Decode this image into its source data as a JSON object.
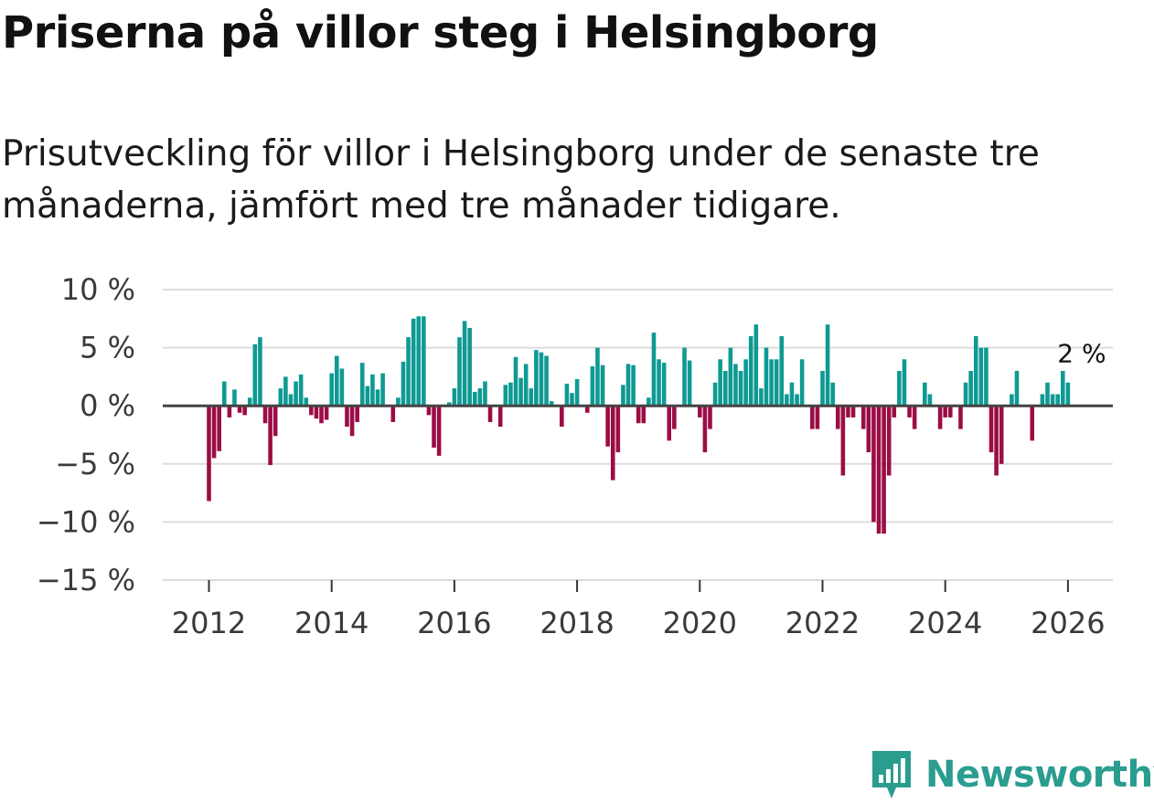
{
  "title": "Priserna på villor steg i Helsingborg",
  "subtitle": "Prisutveckling för villor i Helsingborg under de senaste tre månaderna, jämfört med tre månader tidigare.",
  "brand": {
    "name": "Newsworthy",
    "icon": "newsworthy-logo-icon"
  },
  "colors": {
    "positive": "#0e9a93",
    "negative": "#9b0d45",
    "grid": "#dcdcdc",
    "zero": "#444444",
    "brand": "#2a9d8f"
  },
  "chart_data": {
    "type": "bar",
    "title": "Priserna på villor steg i Helsingborg",
    "xlabel": "",
    "ylabel": "",
    "ylim": [
      -15,
      10
    ],
    "yticks": [
      10,
      5,
      0,
      -5,
      -10,
      -15
    ],
    "ytick_labels": [
      "10 %",
      "5 %",
      "0 %",
      "−5 %",
      "−10 %",
      "−15 %"
    ],
    "xticks": [
      2012,
      2014,
      2016,
      2018,
      2020,
      2022,
      2024,
      2026
    ],
    "xtick_labels": [
      "2012",
      "2014",
      "2016",
      "2018",
      "2020",
      "2022",
      "2024",
      "2026"
    ],
    "x_start": {
      "year": 2012,
      "month": 1
    },
    "frequency": "monthly",
    "value_unit": "%",
    "end_label": "2 %",
    "values": [
      -8.2,
      -4.5,
      -3.9,
      2.1,
      -1.0,
      1.4,
      -0.6,
      -0.8,
      0.7,
      5.3,
      5.9,
      -1.5,
      -5.1,
      -2.6,
      1.5,
      2.5,
      1.0,
      2.1,
      2.7,
      0.7,
      -0.8,
      -1.1,
      -1.5,
      -1.2,
      2.8,
      4.3,
      3.2,
      -1.8,
      -2.6,
      -1.4,
      3.7,
      1.7,
      2.7,
      1.4,
      2.8,
      0.1,
      -1.4,
      0.7,
      3.8,
      5.9,
      7.5,
      7.7,
      7.7,
      -0.8,
      -3.6,
      -4.3,
      0.1,
      0.3,
      1.5,
      5.9,
      7.3,
      6.7,
      1.2,
      1.5,
      2.1,
      -1.4,
      0.1,
      -1.8,
      1.8,
      2.0,
      4.2,
      2.4,
      3.6,
      1.5,
      4.8,
      4.6,
      4.3,
      0.4,
      0.1,
      -1.8,
      1.9,
      1.1,
      2.3,
      0.1,
      -0.6,
      3.4,
      5.0,
      3.5,
      -3.5,
      -6.4,
      -4.0,
      1.8,
      3.6,
      3.5,
      -1.5,
      -1.5,
      0.7,
      6.3,
      4.0,
      3.7,
      -3.0,
      -2.0,
      0.1,
      5.0,
      3.9,
      0.1,
      -1.0,
      -4.0,
      -2.0,
      2.0,
      4.0,
      3.0,
      5.0,
      3.6,
      3.0,
      4.0,
      6.0,
      7.0,
      1.5,
      5.0,
      4.0,
      4.0,
      6.0,
      1.0,
      2.0,
      1.0,
      4.0,
      0.1,
      -2.0,
      -2.0,
      3.0,
      7.0,
      2.0,
      -2.0,
      -6.0,
      -1.0,
      -1.0,
      0.1,
      -2.0,
      -4.0,
      -10.0,
      -11.0,
      -11.0,
      -6.0,
      -1.0,
      3.0,
      4.0,
      -1.0,
      -2.0,
      0.1,
      2.0,
      1.0,
      0.1,
      -2.0,
      -1.0,
      -1.0,
      0.1,
      -2.0,
      2.0,
      3.0,
      6.0,
      5.0,
      5.0,
      -4.0,
      -6.0,
      -5.0,
      0.1,
      1.0,
      3.0,
      0.1,
      0.1,
      -3.0,
      0.1,
      1.0,
      2.0,
      1.0,
      1.0,
      3.0,
      2.0
    ]
  }
}
